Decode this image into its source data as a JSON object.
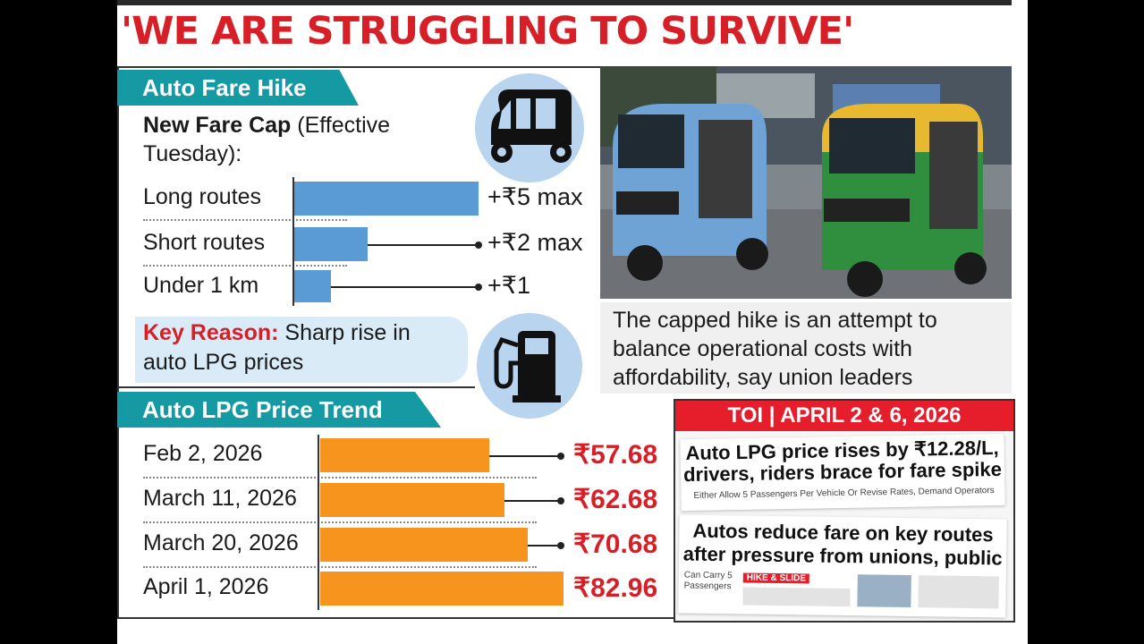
{
  "headline": "'WE ARE STRUGGLING TO SURVIVE'",
  "fare": {
    "tab": "Auto Fare Hike",
    "cap_bold": "New Fare Cap",
    "cap_rest_1": " (Effective",
    "cap_rest_2": "Tuesday):",
    "icon": "auto-rickshaw-icon"
  },
  "reason": {
    "label": "Key Reason:",
    "text_1": " Sharp rise in",
    "text_2": "auto LPG prices",
    "icon": "fuel-pump-icon"
  },
  "lpg": {
    "tab": "Auto LPG Price Trend"
  },
  "photo": {
    "caption": [
      "The capped hike is an attempt to",
      "balance operational costs with",
      "affordability, say union leaders"
    ]
  },
  "clippings": {
    "banner": "TOI | APRIL 2 & 6, 2026",
    "clip1_title": [
      "Auto LPG price rises by ₹12.28/L,",
      "drivers, riders brace for fare spike"
    ],
    "clip1_sub": "Either Allow 5 Passengers Per Vehicle Or Revise Rates, Demand Operators",
    "clip2_title": [
      "Autos reduce fare on key routes",
      "after pressure from unions, public"
    ],
    "clip2_side": [
      "Can Carry 5",
      "Passengers"
    ],
    "clip2_box": "HIKE & SLIDE"
  },
  "chart_data": [
    {
      "type": "bar",
      "orientation": "horizontal",
      "title": "New Fare Cap (Effective Tuesday)",
      "categories": [
        "Long routes",
        "Short routes",
        "Under 1 km"
      ],
      "values": [
        5,
        2,
        1
      ],
      "labels": [
        "+₹5 max",
        "+₹2 max",
        "+₹1"
      ],
      "color": "#5b9bd5"
    },
    {
      "type": "bar",
      "orientation": "horizontal",
      "title": "Auto LPG Price Trend",
      "categories": [
        "Feb 2, 2026",
        "March 11, 2026",
        "March 20, 2026",
        "April 1, 2026"
      ],
      "values": [
        57.68,
        62.68,
        70.68,
        82.96
      ],
      "labels": [
        "₹57.68",
        "₹62.68",
        "₹70.68",
        "₹82.96"
      ],
      "color": "#f7941d"
    }
  ]
}
